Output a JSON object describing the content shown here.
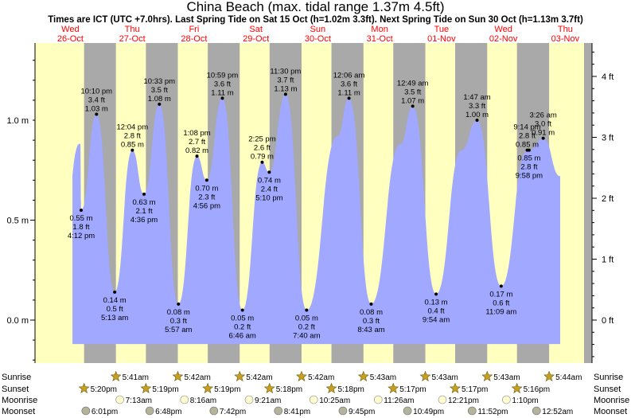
{
  "chart_data": {
    "type": "area",
    "title": "China Beach (max. tidal range 1.37m 4.5ft)",
    "subtitle": "Times are ICT (UTC +7.0hrs). Last Spring Tide on Sat 15 Oct (h=1.02m 3.3ft). Next Spring Tide on Sun 30 Oct (h=1.13m 3.7ft)",
    "days": [
      {
        "dow": "Wed",
        "date": "26-Oct"
      },
      {
        "dow": "Thu",
        "date": "27-Oct"
      },
      {
        "dow": "Fri",
        "date": "28-Oct"
      },
      {
        "dow": "Sat",
        "date": "29-Oct"
      },
      {
        "dow": "Sun",
        "date": "30-Oct"
      },
      {
        "dow": "Mon",
        "date": "31-Oct"
      },
      {
        "dow": "Tue",
        "date": "01-Nov"
      },
      {
        "dow": "Wed",
        "date": "02-Nov"
      },
      {
        "dow": "Thu",
        "date": "03-Nov"
      }
    ],
    "y_left_ticks": [
      "0.0 m",
      "0.5 m",
      "1.0 m"
    ],
    "y_right_ticks": [
      "0 ft",
      "1 ft",
      "2 ft",
      "3 ft",
      "4 ft"
    ],
    "ylim_m": [
      -0.2,
      1.55
    ],
    "tides": [
      {
        "time": "4:12 pm",
        "h": 0.55,
        "labels": [
          "0.55 m",
          "1.8 ft",
          "4:12 pm"
        ],
        "pos": "below"
      },
      {
        "time": "10:10 pm",
        "h": 1.03,
        "labels": [
          "10:10 pm",
          "3.4 ft",
          "1.03 m"
        ],
        "pos": "above"
      },
      {
        "time": "5:13 am",
        "h": 0.14,
        "labels": [
          "0.14 m",
          "0.5 ft",
          "5:13 am"
        ],
        "pos": "below"
      },
      {
        "time": "12:04 pm",
        "h": 0.85,
        "labels": [
          "12:04 pm",
          "2.8 ft",
          "0.85 m"
        ],
        "pos": "above"
      },
      {
        "time": "4:36 pm",
        "h": 0.63,
        "labels": [
          "0.63 m",
          "2.1 ft",
          "4:36 pm"
        ],
        "pos": "below"
      },
      {
        "time": "10:33 pm",
        "h": 1.08,
        "labels": [
          "10:33 pm",
          "3.5 ft",
          "1.08 m"
        ],
        "pos": "above"
      },
      {
        "time": "5:57 am",
        "h": 0.08,
        "labels": [
          "0.08 m",
          "0.3 ft",
          "5:57 am"
        ],
        "pos": "below"
      },
      {
        "time": "1:08 pm",
        "h": 0.82,
        "labels": [
          "1:08 pm",
          "2.7 ft",
          "0.82 m"
        ],
        "pos": "above"
      },
      {
        "time": "4:56 pm",
        "h": 0.7,
        "labels": [
          "0.70 m",
          "2.3 ft",
          "4:56 pm"
        ],
        "pos": "below"
      },
      {
        "time": "10:59 pm",
        "h": 1.11,
        "labels": [
          "10:59 pm",
          "3.6 ft",
          "1.11 m"
        ],
        "pos": "above"
      },
      {
        "time": "6:46 am",
        "h": 0.05,
        "labels": [
          "0.05 m",
          "0.2 ft",
          "6:46 am"
        ],
        "pos": "below"
      },
      {
        "time": "2:25 pm",
        "h": 0.79,
        "labels": [
          "2:25 pm",
          "2.6 ft",
          "0.79 m"
        ],
        "pos": "above"
      },
      {
        "time": "5:10 pm",
        "h": 0.74,
        "labels": [
          "0.74 m",
          "2.4 ft",
          "5:10 pm"
        ],
        "pos": "below"
      },
      {
        "time": "11:30 pm",
        "h": 1.13,
        "labels": [
          "11:30 pm",
          "3.7 ft",
          "1.13 m"
        ],
        "pos": "above"
      },
      {
        "time": "7:40 am",
        "h": 0.05,
        "labels": [
          "0.05 m",
          "0.2 ft",
          "7:40 am"
        ],
        "pos": "below"
      },
      {
        "time": "12:06 am",
        "h": 1.11,
        "labels": [
          "12:06 am",
          "3.6 ft",
          "1.11 m"
        ],
        "pos": "above"
      },
      {
        "time": "8:43 am",
        "h": 0.08,
        "labels": [
          "0.08 m",
          "0.3 ft",
          "8:43 am"
        ],
        "pos": "below"
      },
      {
        "time": "12:49 am",
        "h": 1.07,
        "labels": [
          "12:49 am",
          "3.5 ft",
          "1.07 m"
        ],
        "pos": "above"
      },
      {
        "time": "9:54 am",
        "h": 0.13,
        "labels": [
          "0.13 m",
          "0.4 ft",
          "9:54 am"
        ],
        "pos": "below"
      },
      {
        "time": "1:47 am",
        "h": 1.0,
        "labels": [
          "1:47 am",
          "3.3 ft",
          "1.00 m"
        ],
        "pos": "above"
      },
      {
        "time": "11:09 am",
        "h": 0.17,
        "labels": [
          "0.17 m",
          "0.6 ft",
          "11:09 am"
        ],
        "pos": "below"
      },
      {
        "time": "9:14 pm",
        "h": 0.85,
        "labels": [
          "9:14 pm",
          "2.8 ft",
          "0.85 m"
        ],
        "pos": "above"
      },
      {
        "time": "9:58 pm",
        "h": 0.85,
        "labels": [
          "0.85 m",
          "2.8 ft",
          "9:58 pm"
        ],
        "pos": "below"
      },
      {
        "time": "3:26 am",
        "h": 0.91,
        "labels": [
          "3:26 am",
          "3.0 ft",
          "0.91 m"
        ],
        "pos": "above"
      }
    ],
    "astro_rows": [
      "Sunrise",
      "Sunset",
      "Moonrise",
      "Moonset"
    ],
    "sunrise": [
      "5:41am",
      "5:42am",
      "5:42am",
      "5:42am",
      "5:43am",
      "5:43am",
      "5:43am",
      "5:44am"
    ],
    "sunset": [
      "5:20pm",
      "5:19pm",
      "5:19pm",
      "5:18pm",
      "5:18pm",
      "5:17pm",
      "5:17pm",
      "5:16pm"
    ],
    "moonrise": [
      "7:13am",
      "8:16am",
      "9:21am",
      "10:25am",
      "11:26am",
      "12:21pm",
      "1:10pm"
    ],
    "moonset": [
      "6:01pm",
      "6:48pm",
      "7:42pm",
      "8:41pm",
      "9:45pm",
      "10:49pm",
      "11:52pm",
      "12:52am"
    ],
    "colors": {
      "day": "#ffffc0",
      "night": "#a9a9a9",
      "water": "#a0a8ff",
      "day_label": "#ff0000",
      "sun_icon": "#c8a020",
      "moonrise_icon": "#fffcd0",
      "moonset_icon": "#b4b49a"
    }
  }
}
